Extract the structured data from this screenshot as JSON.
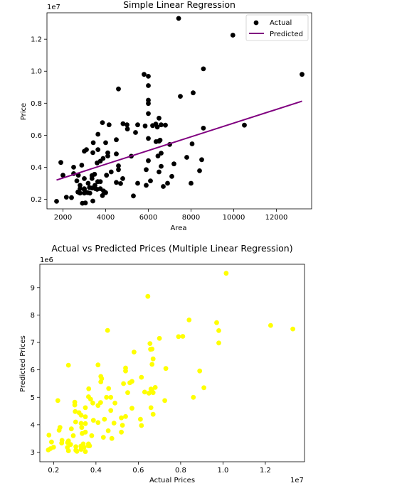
{
  "chart_data": [
    {
      "type": "scatter",
      "title": "Simple Linear Regression",
      "xlabel": "Area",
      "ylabel": "Price",
      "y_offset_text": "1e7",
      "xlim": [
        1250,
        13650
      ],
      "ylim": [
        1400000,
        13650000
      ],
      "xticks": [
        2000,
        4000,
        6000,
        8000,
        10000,
        12000
      ],
      "xtick_labels": [
        "2000",
        "4000",
        "6000",
        "8000",
        "10000",
        "12000"
      ],
      "yticks": [
        2000000,
        4000000,
        6000000,
        8000000,
        10000000,
        12000000
      ],
      "ytick_labels": [
        "0.2",
        "0.4",
        "0.6",
        "0.8",
        "1.0",
        "1.2"
      ],
      "legend_placement": "top-right",
      "grid": false,
      "series": [
        {
          "name": "Actual",
          "kind": "scatter",
          "color": "#000000",
          "points": [
            [
              7420,
              13300000
            ],
            [
              9960,
              12250000
            ],
            [
              8580,
              10150000
            ],
            [
              13200,
              9800000
            ],
            [
              5800,
              9800000
            ],
            [
              6000,
              9680000
            ],
            [
              6000,
              9100000
            ],
            [
              4600,
              8890000
            ],
            [
              6000,
              8190000
            ],
            [
              8100,
              8650000
            ],
            [
              7500,
              8430000
            ],
            [
              6000,
              7980000
            ],
            [
              6000,
              7350000
            ],
            [
              6500,
              7070000
            ],
            [
              8580,
              6440000
            ],
            [
              10500,
              6630000
            ],
            [
              3850,
              6790000
            ],
            [
              4160,
              6650000
            ],
            [
              6350,
              6700000
            ],
            [
              5500,
              6650000
            ],
            [
              6200,
              6600000
            ],
            [
              5850,
              6580000
            ],
            [
              6600,
              6650000
            ],
            [
              6800,
              6630000
            ],
            [
              5000,
              6650000
            ],
            [
              6420,
              6510000
            ],
            [
              5020,
              6390000
            ],
            [
              4815,
              6720000
            ],
            [
              5400,
              6170000
            ],
            [
              3640,
              6060000
            ],
            [
              6000,
              5800000
            ],
            [
              6500,
              5630000
            ],
            [
              4000,
              5530000
            ],
            [
              8050,
              5460000
            ],
            [
              3420,
              5530000
            ],
            [
              4500,
              5720000
            ],
            [
              6550,
              5690000
            ],
            [
              6360,
              5600000
            ],
            [
              7000,
              5420000
            ],
            [
              3640,
              5100000
            ],
            [
              3100,
              5100000
            ],
            [
              3000,
              5000000
            ],
            [
              4100,
              4900000
            ],
            [
              6600,
              4880000
            ],
            [
              3400,
              4910000
            ],
            [
              4500,
              4830000
            ],
            [
              4100,
              4700000
            ],
            [
              5200,
              4690000
            ],
            [
              3880,
              4550000
            ],
            [
              7800,
              4620000
            ],
            [
              6450,
              4700000
            ],
            [
              8500,
              4470000
            ],
            [
              4600,
              4090000
            ],
            [
              6000,
              4410000
            ],
            [
              3750,
              4380000
            ],
            [
              3600,
              4270000
            ],
            [
              7200,
              4210000
            ],
            [
              2880,
              4130000
            ],
            [
              2500,
              4000000
            ],
            [
              6600,
              4060000
            ],
            [
              4600,
              3850000
            ],
            [
              5900,
              3850000
            ],
            [
              4260,
              3710000
            ],
            [
              8400,
              3780000
            ],
            [
              3480,
              3560000
            ],
            [
              6500,
              3710000
            ],
            [
              2720,
              3500000
            ],
            [
              2000,
              3500000
            ],
            [
              4040,
              3500000
            ],
            [
              3360,
              3480000
            ],
            [
              7100,
              3430000
            ],
            [
              3360,
              3300000
            ],
            [
              4800,
              3290000
            ],
            [
              3000,
              3290000
            ],
            [
              6100,
              3150000
            ],
            [
              3750,
              3100000
            ],
            [
              2650,
              3150000
            ],
            [
              3630,
              3100000
            ],
            [
              4500,
              3050000
            ],
            [
              3180,
              3000000
            ],
            [
              5500,
              3000000
            ],
            [
              4700,
              2980000
            ],
            [
              6900,
              3000000
            ],
            [
              2800,
              2870000
            ],
            [
              3500,
              2870000
            ],
            [
              5900,
              2870000
            ],
            [
              6700,
              2800000
            ],
            [
              3450,
              2730000
            ],
            [
              3240,
              2730000
            ],
            [
              3360,
              2700000
            ],
            [
              3000,
              2660000
            ],
            [
              2800,
              2660000
            ],
            [
              3750,
              2660000
            ],
            [
              3600,
              2620000
            ],
            [
              3520,
              2660000
            ],
            [
              3000,
              2590000
            ],
            [
              3900,
              2520000
            ],
            [
              4000,
              2410000
            ],
            [
              2700,
              2450000
            ],
            [
              3150,
              2410000
            ],
            [
              3260,
              2380000
            ],
            [
              3000,
              2380000
            ],
            [
              2800,
              2380000
            ],
            [
              3850,
              2230000
            ],
            [
              5300,
              2210000
            ],
            [
              2400,
              2100000
            ],
            [
              2160,
              2130000
            ],
            [
              3400,
              1890000
            ],
            [
              1700,
              1870000
            ],
            [
              3050,
              1770000
            ],
            [
              2910,
              1750000
            ],
            [
              8000,
              3000000
            ],
            [
              1900,
              4300000
            ],
            [
              2500,
              3600000
            ]
          ]
        },
        {
          "name": "Predicted",
          "kind": "line",
          "color": "#800080",
          "points": [
            [
              1700,
              3200000
            ],
            [
              13200,
              8130000
            ]
          ]
        }
      ]
    },
    {
      "type": "scatter",
      "title": "Actual vs Predicted Prices (Multiple Linear Regression)",
      "xlabel": "Actual Prices",
      "ylabel": "Predicted Prices",
      "x_offset_text": "1e7",
      "y_offset_text": "1e6",
      "xlim": [
        1350000,
        13850000
      ],
      "ylim": [
        2650000,
        9850000
      ],
      "xticks": [
        2000000,
        4000000,
        6000000,
        8000000,
        10000000,
        12000000
      ],
      "xtick_labels": [
        "0.2",
        "0.4",
        "0.6",
        "0.8",
        "1.0",
        "1.2"
      ],
      "yticks": [
        3000000,
        4000000,
        5000000,
        6000000,
        7000000,
        8000000,
        9000000
      ],
      "ytick_labels": [
        "3",
        "4",
        "5",
        "6",
        "7",
        "8",
        "9"
      ],
      "grid": false,
      "series": [
        {
          "name": "",
          "kind": "scatter",
          "color": "#ffff00",
          "points": [
            [
              10150000,
              9520000
            ],
            [
              6450000,
              8680000
            ],
            [
              8400000,
              7820000
            ],
            [
              9700000,
              7720000
            ],
            [
              4550000,
              7440000
            ],
            [
              9800000,
              7430000
            ],
            [
              12250000,
              7620000
            ],
            [
              13300000,
              7490000
            ],
            [
              8100000,
              7220000
            ],
            [
              7900000,
              7210000
            ],
            [
              7000000,
              7150000
            ],
            [
              6550000,
              6960000
            ],
            [
              9800000,
              6980000
            ],
            [
              6580000,
              6750000
            ],
            [
              6650000,
              6760000
            ],
            [
              5800000,
              6650000
            ],
            [
              6700000,
              6400000
            ],
            [
              6650000,
              6200000
            ],
            [
              2700000,
              6170000
            ],
            [
              4100000,
              6180000
            ],
            [
              5400000,
              6070000
            ],
            [
              5400000,
              5960000
            ],
            [
              8900000,
              5960000
            ],
            [
              7300000,
              6050000
            ],
            [
              4230000,
              5760000
            ],
            [
              6150000,
              5730000
            ],
            [
              4270000,
              5680000
            ],
            [
              5700000,
              5580000
            ],
            [
              5600000,
              5530000
            ],
            [
              6800000,
              5360000
            ],
            [
              5300000,
              5500000
            ],
            [
              9100000,
              5350000
            ],
            [
              6600000,
              5300000
            ],
            [
              6640000,
              5250000
            ],
            [
              3660000,
              5310000
            ],
            [
              6300000,
              5190000
            ],
            [
              6500000,
              5150000
            ],
            [
              6700000,
              5170000
            ],
            [
              5500000,
              5170000
            ],
            [
              4500000,
              5000000
            ],
            [
              4700000,
              5000000
            ],
            [
              8600000,
              5000000
            ],
            [
              3750000,
              4930000
            ],
            [
              2200000,
              4880000
            ],
            [
              3000000,
              4820000
            ],
            [
              3850000,
              4790000
            ],
            [
              3000000,
              4720000
            ],
            [
              4220000,
              4810000
            ],
            [
              4900000,
              4790000
            ],
            [
              4100000,
              4700000
            ],
            [
              3500000,
              4620000
            ],
            [
              6600000,
              4620000
            ],
            [
              5700000,
              4600000
            ],
            [
              7250000,
              4880000
            ],
            [
              4700000,
              4520000
            ],
            [
              3200000,
              4440000
            ],
            [
              3020000,
              4480000
            ],
            [
              3300000,
              4350000
            ],
            [
              6700000,
              4380000
            ],
            [
              3500000,
              4290000
            ],
            [
              5200000,
              4250000
            ],
            [
              5400000,
              4300000
            ],
            [
              6100000,
              4200000
            ],
            [
              4400000,
              4200000
            ],
            [
              3880000,
              4160000
            ],
            [
              4100000,
              4080000
            ],
            [
              4850000,
              4060000
            ],
            [
              3040000,
              4100000
            ],
            [
              3300000,
              4050000
            ],
            [
              3500000,
              4040000
            ],
            [
              5250000,
              3980000
            ],
            [
              6150000,
              3970000
            ],
            [
              3330000,
              3900000
            ],
            [
              2300000,
              3900000
            ],
            [
              2840000,
              3850000
            ],
            [
              2260000,
              3800000
            ],
            [
              4580000,
              3780000
            ],
            [
              3500000,
              3730000
            ],
            [
              5200000,
              3730000
            ],
            [
              3350000,
              3680000
            ],
            [
              2930000,
              3600000
            ],
            [
              3800000,
              3600000
            ],
            [
              4350000,
              3540000
            ],
            [
              4750000,
              3500000
            ],
            [
              1780000,
              3620000
            ],
            [
              2400000,
              3430000
            ],
            [
              2700000,
              3410000
            ],
            [
              1900000,
              3370000
            ],
            [
              2660000,
              3350000
            ],
            [
              2380000,
              3330000
            ],
            [
              3650000,
              3300000
            ],
            [
              3400000,
              3300000
            ],
            [
              2800000,
              3280000
            ],
            [
              3700000,
              3230000
            ],
            [
              3290000,
              3220000
            ],
            [
              3050000,
              3200000
            ],
            [
              2650000,
              3170000
            ],
            [
              2000000,
              3180000
            ],
            [
              3440000,
              3180000
            ],
            [
              1850000,
              3130000
            ],
            [
              3300000,
              3100000
            ],
            [
              3050000,
              3070000
            ],
            [
              2700000,
              3050000
            ],
            [
              3650000,
              3230000
            ],
            [
              1750000,
              3080000
            ],
            [
              3100000,
              3030000
            ],
            [
              3500000,
              3020000
            ],
            [
              4230000,
              5560000
            ],
            [
              4600000,
              5320000
            ],
            [
              3650000,
              5020000
            ]
          ]
        }
      ]
    }
  ]
}
